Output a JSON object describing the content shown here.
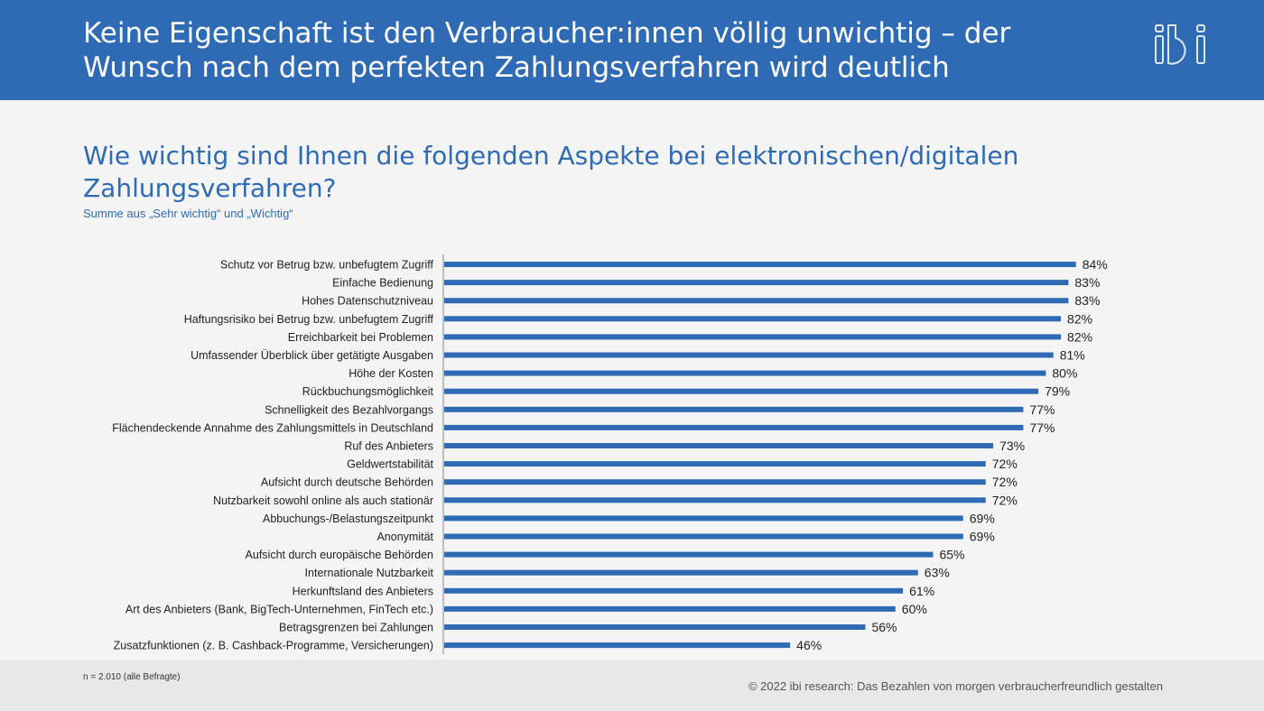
{
  "header": {
    "title": "Keine Eigenschaft ist den Verbraucher:innen völlig unwichtig – der Wunsch nach dem perfekten Zahlungsverfahren wird deutlich",
    "logo_text": "ibi"
  },
  "colors": {
    "header_bg": "#2e6bb4",
    "bar": "#2e6bb4",
    "question_text": "#2e6bb4"
  },
  "footer": {
    "note": "n = 2.010 (alle Befragte)",
    "copyright": "© 2022 ibi research: Das Bezahlen von morgen verbraucherfreundlich gestalten"
  },
  "chart_data": {
    "type": "bar",
    "orientation": "horizontal",
    "title": "Wie wichtig sind Ihnen die folgenden Aspekte bei elektronischen/digitalen Zahlungsverfahren?",
    "subtitle": "Summe aus „Sehr wichtig“ und „Wichtig“",
    "value_suffix": "%",
    "xlim": [
      0,
      100
    ],
    "grid": false,
    "categories": [
      "Schutz vor Betrug bzw. unbefugtem Zugriff",
      "Einfache Bedienung",
      "Hohes Datenschutzniveau",
      "Haftungsrisiko bei Betrug bzw. unbefugtem Zugriff",
      "Erreichbarkeit bei Problemen",
      "Umfassender Überblick über getätigte Ausgaben",
      "Höhe der Kosten",
      "Rückbuchungsmöglichkeit",
      "Schnelligkeit des Bezahlvorgangs",
      "Flächendeckende Annahme des Zahlungsmittels in Deutschland",
      "Ruf des Anbieters",
      "Geldwertstabilität",
      "Aufsicht durch deutsche Behörden",
      "Nutzbarkeit sowohl online als auch stationär",
      "Abbuchungs-/Belastungszeitpunkt",
      "Anonymität",
      "Aufsicht durch europäische Behörden",
      "Internationale Nutzbarkeit",
      "Herkunftsland des Anbieters",
      "Art des Anbieters (Bank, BigTech-Unternehmen, FinTech etc.)",
      "Betragsgrenzen bei Zahlungen",
      "Zusatzfunktionen (z. B. Cashback-Programme, Versicherungen)"
    ],
    "values": [
      84,
      83,
      83,
      82,
      82,
      81,
      80,
      79,
      77,
      77,
      73,
      72,
      72,
      72,
      69,
      69,
      65,
      63,
      61,
      60,
      56,
      46
    ]
  }
}
